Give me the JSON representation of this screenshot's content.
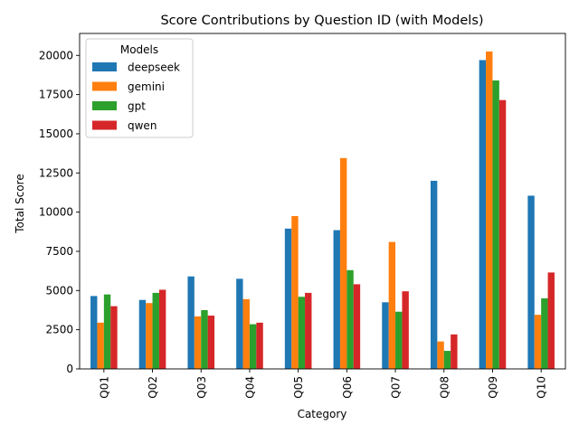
{
  "chart_data": {
    "type": "bar",
    "title": "Score Contributions by Question ID (with Models)",
    "xlabel": "Category",
    "ylabel": "Total Score",
    "ylim": [
      0,
      21400
    ],
    "yticks": [
      0,
      2500,
      5000,
      7500,
      10000,
      12500,
      15000,
      17500,
      20000
    ],
    "categories": [
      "Q01",
      "Q02",
      "Q03",
      "Q04",
      "Q05",
      "Q06",
      "Q07",
      "Q08",
      "Q09",
      "Q10"
    ],
    "legend": {
      "title": "Models",
      "placement": "top-left"
    },
    "grid": false,
    "series": [
      {
        "name": "deepseek",
        "color": "#1f77b4",
        "values": [
          4650,
          4400,
          5900,
          5750,
          8950,
          8850,
          4250,
          12000,
          19700,
          11050
        ]
      },
      {
        "name": "gemini",
        "color": "#ff7f0e",
        "values": [
          2950,
          4200,
          3350,
          4450,
          9750,
          13450,
          8100,
          1750,
          20250,
          3450
        ]
      },
      {
        "name": "gpt",
        "color": "#2ca02c",
        "values": [
          4750,
          4850,
          3750,
          2850,
          4600,
          6300,
          3650,
          1150,
          18400,
          4500
        ]
      },
      {
        "name": "qwen",
        "color": "#d62728",
        "values": [
          4000,
          5050,
          3400,
          2950,
          4850,
          5400,
          4950,
          2200,
          17150,
          6150
        ]
      }
    ]
  }
}
